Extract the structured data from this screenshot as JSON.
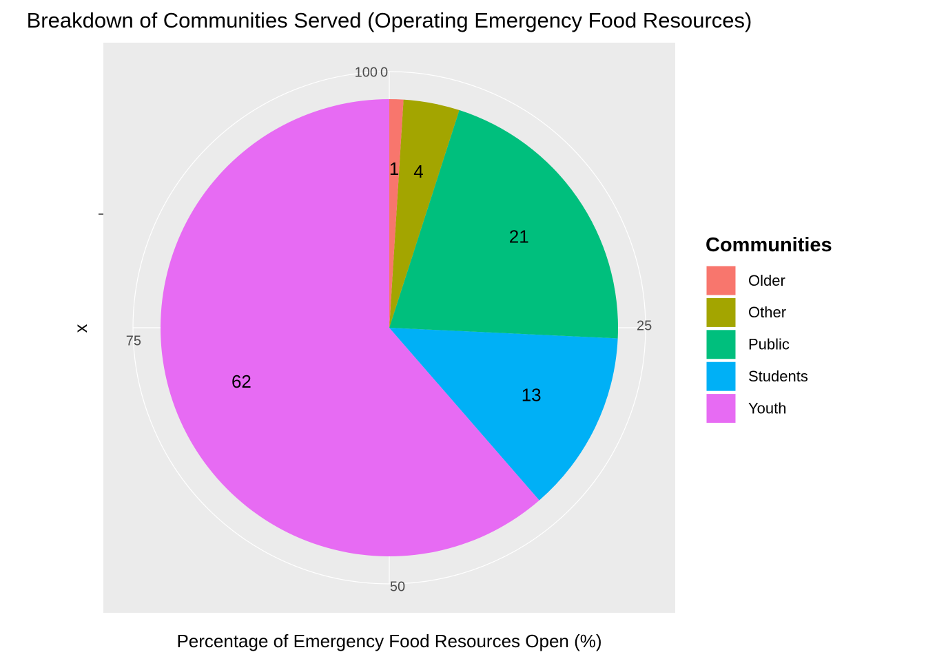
{
  "chart_data": {
    "type": "pie",
    "title": "Breakdown of Communities Served (Operating Emergency Food Resources)",
    "xlabel": "Percentage of Emergency Food Resources Open (%)",
    "ylabel": "x",
    "theta_ticks": [
      "0",
      "25",
      "50",
      "75",
      "100"
    ],
    "legend": {
      "title": "Communities",
      "position": "right"
    },
    "slices": [
      {
        "label": "Older",
        "value": 1,
        "color": "#F8766D",
        "data_label": "1"
      },
      {
        "label": "Other",
        "value": 4,
        "color": "#A3A500",
        "data_label": "4"
      },
      {
        "label": "Public",
        "value": 21,
        "color": "#00BF7D",
        "data_label": "21"
      },
      {
        "label": "Students",
        "value": 13,
        "color": "#00B0F6",
        "data_label": "13"
      },
      {
        "label": "Youth",
        "value": 62,
        "color": "#E76BF3",
        "data_label": "62"
      }
    ],
    "panel_background": "#EBEBEB",
    "grid_color": "#FFFFFF",
    "grid": true
  }
}
